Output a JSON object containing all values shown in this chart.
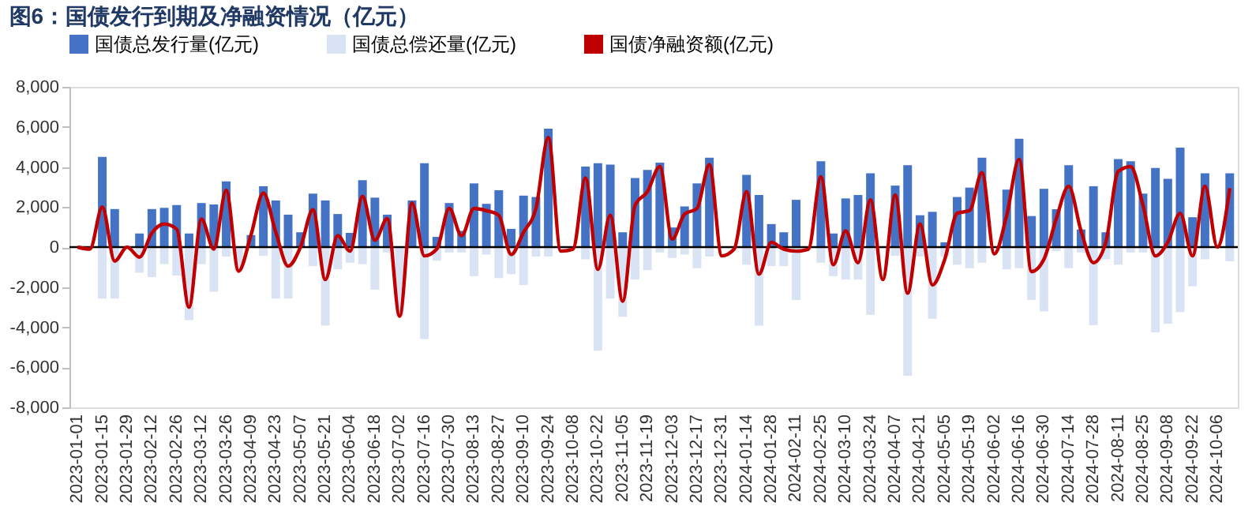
{
  "chart_data": {
    "type": "bar",
    "title": "图6：国债发行到期及净融资情况（亿元）",
    "categories": [
      "2023-01-01",
      null,
      "2023-01-15",
      null,
      "2023-01-29",
      null,
      "2023-02-12",
      null,
      "2023-02-26",
      null,
      "2023-03-12",
      null,
      "2023-03-26",
      null,
      "2023-04-09",
      null,
      "2023-04-23",
      null,
      "2023-05-07",
      null,
      "2023-05-21",
      null,
      "2023-06-04",
      null,
      "2023-06-18",
      null,
      "2023-07-02",
      null,
      "2023-07-16",
      null,
      "2023-07-30",
      null,
      "2023-08-13",
      null,
      "2023-08-27",
      null,
      "2023-09-10",
      null,
      "2023-09-24",
      null,
      "2023-10-08",
      null,
      "2023-10-22",
      null,
      "2023-11-05",
      null,
      "2023-11-19",
      null,
      "2023-12-03",
      null,
      "2023-12-17",
      null,
      "2023-12-31",
      null,
      "2024-01-14",
      null,
      "2024-01-28",
      null,
      "2024-02-11",
      null,
      "2024-02-25",
      null,
      "2024-03-10",
      null,
      "2024-03-24",
      null,
      "2024-04-07",
      null,
      "2024-04-21",
      null,
      "2024-05-05",
      null,
      "2024-05-19",
      null,
      "2024-06-02",
      null,
      "2024-06-16",
      null,
      "2024-06-30",
      null,
      "2024-07-14",
      null,
      "2024-07-28",
      null,
      "2024-08-11",
      null,
      "2024-08-25",
      null,
      "2024-09-08",
      null,
      "2024-09-22",
      null,
      "2024-10-06",
      null
    ],
    "series": [
      {
        "name": "国债总发行量(亿元)",
        "color": "#4472c4",
        "values": [
          null,
          null,
          4500,
          1900,
          null,
          680,
          1900,
          1960,
          2100,
          680,
          2200,
          2130,
          3280,
          null,
          600,
          3040,
          2330,
          1620,
          740,
          2670,
          2330,
          1650,
          710,
          3340,
          2470,
          1620,
          null,
          2330,
          4190,
          510,
          2200,
          810,
          3180,
          2160,
          2840,
          910,
          2570,
          2500,
          5910,
          null,
          null,
          4020,
          4190,
          4120,
          740,
          3450,
          3850,
          4220,
          980,
          2030,
          3180,
          4460,
          null,
          null,
          3610,
          2600,
          1150,
          740,
          2360,
          null,
          4290,
          680,
          2430,
          2600,
          3680,
          null,
          3070,
          4090,
          1590,
          1760,
          240,
          2500,
          2970,
          4460,
          null,
          2870,
          5410,
          1550,
          2910,
          1890,
          4090,
          880,
          3040,
          740,
          4390,
          4290,
          2670,
          3950,
          3410,
          4970,
          1490,
          3680,
          null,
          3680
        ]
      },
      {
        "name": "国债总偿还量(亿元)",
        "color": "#dae3f3",
        "values": [
          null,
          null,
          -2570,
          -2570,
          null,
          -1280,
          -1500,
          -850,
          -1420,
          -3650,
          -850,
          -2230,
          -470,
          -1200,
          null,
          -440,
          -2570,
          -2570,
          null,
          -950,
          -3920,
          -1110,
          -780,
          -850,
          -2130,
          -270,
          -3450,
          null,
          -4590,
          -680,
          -270,
          -270,
          -1450,
          -370,
          -1550,
          -1350,
          -1890,
          -470,
          -470,
          null,
          null,
          -610,
          -5170,
          -2570,
          -3480,
          -1620,
          -1150,
          -270,
          -540,
          -370,
          -1050,
          -470,
          null,
          null,
          -880,
          -3920,
          -950,
          -950,
          -2640,
          null,
          -780,
          -1450,
          -1620,
          -1620,
          -3380,
          null,
          -440,
          -6420,
          -470,
          -3580,
          -470,
          -880,
          -1050,
          -780,
          null,
          -1110,
          -1050,
          -2640,
          -3210,
          -200,
          -1050,
          -270,
          -3890,
          -610,
          -880,
          -270,
          -270,
          -4260,
          -3820,
          -3240,
          -1960,
          -610,
          null,
          -710
        ]
      },
      {
        "name": "国债净融资额(亿元)",
        "type": "line",
        "color": "#c00000",
        "values": [
          0,
          -100,
          2000,
          -700,
          0,
          -500,
          700,
          1150,
          900,
          -3000,
          1400,
          -100,
          2840,
          -1200,
          600,
          2700,
          750,
          -950,
          0,
          1860,
          -1620,
          570,
          -200,
          2530,
          340,
          1420,
          -3450,
          2200,
          -440,
          -100,
          1930,
          570,
          1930,
          1820,
          1590,
          -370,
          740,
          1930,
          5470,
          -200,
          -100,
          3450,
          -1110,
          1590,
          -2700,
          2090,
          2770,
          4020,
          400,
          1650,
          1930,
          4120,
          -440,
          -100,
          2770,
          -1350,
          240,
          -100,
          -200,
          -100,
          3510,
          -880,
          810,
          -780,
          2360,
          -1620,
          2600,
          -2300,
          1150,
          -1890,
          -610,
          1690,
          1820,
          3720,
          -340,
          1590,
          4390,
          -1220,
          -610,
          1420,
          3040,
          810,
          -780,
          240,
          3780,
          4020,
          2090,
          -440,
          240,
          1690,
          -440,
          3040,
          0,
          2940
        ]
      }
    ],
    "ylim": [
      -8000,
      8000
    ],
    "yticks": [
      {
        "value": -8000,
        "label": "-8,000"
      },
      {
        "value": -6000,
        "label": "-6,000"
      },
      {
        "value": -4000,
        "label": "-4,000"
      },
      {
        "value": -2000,
        "label": "-2,000"
      },
      {
        "value": 0,
        "label": "0"
      },
      {
        "value": 2000,
        "label": "2,000"
      },
      {
        "value": 4000,
        "label": "4,000"
      },
      {
        "value": 6000,
        "label": "6,000"
      },
      {
        "value": 8000,
        "label": "8,000"
      }
    ],
    "ref_lines": [
      {
        "axis": "y",
        "value": 0,
        "color": "#000000"
      }
    ],
    "stacked": true,
    "grid": false,
    "legend": "top"
  }
}
